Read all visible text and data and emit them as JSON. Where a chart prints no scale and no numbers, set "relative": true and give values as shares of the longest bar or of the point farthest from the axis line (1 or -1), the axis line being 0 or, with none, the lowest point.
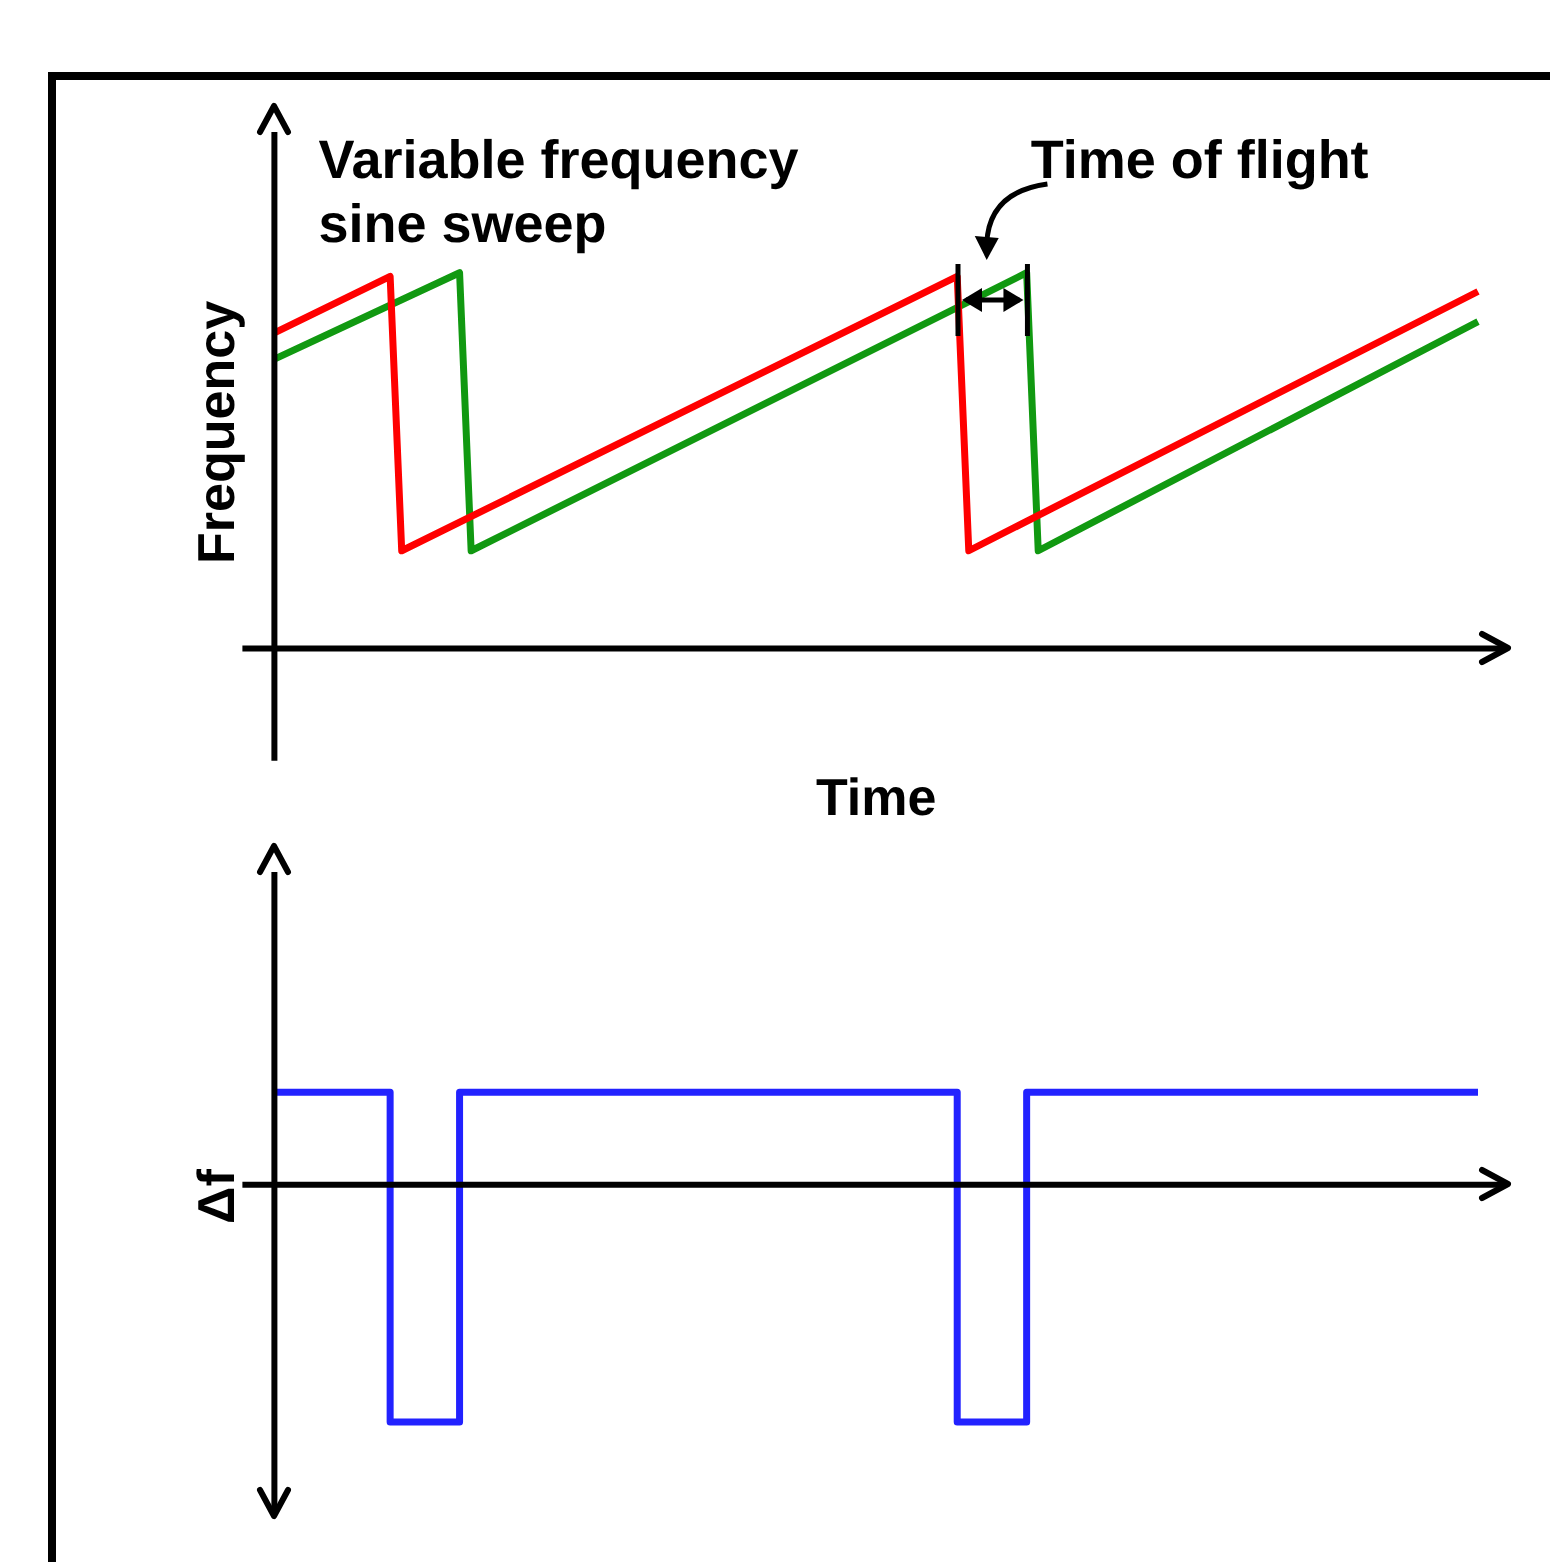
{
  "chart_data": [
    {
      "type": "line",
      "relative": true,
      "ylabel": "Frequency",
      "xlabel": "Time",
      "grid": false,
      "legend": false,
      "marker": "none",
      "line_style": "solid",
      "annotations": [
        "Variable frequency sine sweep",
        "Time of flight"
      ],
      "categories": [
        null,
        null,
        null,
        null,
        null,
        null,
        null,
        null,
        null,
        null,
        null,
        null,
        null,
        null,
        null,
        null,
        null,
        null,
        null,
        null,
        null,
        null,
        null,
        null,
        null,
        null,
        null,
        null,
        null,
        null,
        null,
        null,
        null,
        null,
        null,
        null,
        null,
        null,
        null,
        null,
        null,
        null,
        null,
        null,
        null,
        null,
        null,
        null,
        null,
        null,
        null,
        null,
        null,
        null,
        null,
        null,
        null,
        null,
        null,
        null,
        null,
        null,
        null,
        null,
        null,
        null,
        null,
        null,
        null,
        null,
        null,
        null,
        null,
        null,
        null,
        null,
        null,
        null,
        null,
        null,
        null,
        null,
        null,
        null,
        null,
        null,
        null,
        null,
        null,
        null,
        null,
        null,
        null,
        null,
        null,
        null,
        null,
        null,
        null,
        null,
        null,
        null,
        null,
        null,
        null
      ],
      "series": [
        {
          "color": "#ff0000",
          "values": [
            0.84,
            null,
            null,
            null,
            null,
            null,
            null,
            null,
            null,
            null,
            0.99,
            0.26,
            null,
            null,
            null,
            null,
            null,
            null,
            null,
            null,
            null,
            null,
            null,
            null,
            null,
            null,
            null,
            null,
            null,
            null,
            null,
            null,
            null,
            null,
            null,
            null,
            null,
            null,
            null,
            null,
            null,
            null,
            null,
            null,
            null,
            null,
            null,
            null,
            null,
            null,
            null,
            null,
            null,
            null,
            null,
            null,
            null,
            null,
            null,
            0.99,
            0.26,
            null,
            null,
            null,
            null,
            null,
            null,
            null,
            null,
            null,
            null,
            null,
            null,
            null,
            null,
            null,
            null,
            null,
            null,
            null,
            null,
            null,
            null,
            null,
            null,
            null,
            null,
            null,
            null,
            null,
            null,
            null,
            null,
            null,
            null,
            null,
            null,
            null,
            null,
            null,
            null,
            null,
            null,
            null,
            0.95
          ]
        },
        {
          "color": "#119911",
          "values": [
            0.77,
            null,
            null,
            null,
            null,
            null,
            null,
            null,
            null,
            null,
            null,
            null,
            null,
            null,
            null,
            null,
            1.0,
            0.26,
            null,
            null,
            null,
            null,
            null,
            null,
            null,
            null,
            null,
            null,
            null,
            null,
            null,
            null,
            null,
            null,
            null,
            null,
            null,
            null,
            null,
            null,
            null,
            null,
            null,
            null,
            null,
            null,
            null,
            null,
            null,
            null,
            null,
            null,
            null,
            null,
            null,
            null,
            null,
            null,
            null,
            null,
            null,
            null,
            null,
            null,
            null,
            1.0,
            0.26,
            null,
            null,
            null,
            null,
            null,
            null,
            null,
            null,
            null,
            null,
            null,
            null,
            null,
            null,
            null,
            null,
            null,
            null,
            null,
            null,
            null,
            null,
            null,
            null,
            null,
            null,
            null,
            null,
            null,
            null,
            null,
            null,
            null,
            null,
            null,
            null,
            null,
            0.87
          ]
        }
      ]
    },
    {
      "type": "step",
      "relative": true,
      "ylabel": "Δf",
      "grid": false,
      "legend": false,
      "marker": "none",
      "line_style": "solid",
      "categories": [
        null,
        null,
        null,
        null,
        null,
        null,
        null,
        null,
        null,
        null,
        null,
        null,
        null,
        null,
        null,
        null,
        null,
        null,
        null,
        null,
        null,
        null,
        null,
        null,
        null,
        null,
        null,
        null,
        null,
        null,
        null,
        null,
        null,
        null,
        null,
        null,
        null,
        null,
        null,
        null,
        null,
        null,
        null,
        null,
        null,
        null,
        null,
        null,
        null,
        null,
        null,
        null,
        null,
        null,
        null,
        null,
        null,
        null,
        null,
        null,
        null,
        null,
        null,
        null,
        null,
        null,
        null,
        null,
        null,
        null,
        null,
        null,
        null,
        null,
        null,
        null,
        null,
        null,
        null,
        null,
        null,
        null,
        null,
        null,
        null,
        null,
        null,
        null,
        null,
        null,
        null,
        null,
        null,
        null,
        null,
        null,
        null,
        null,
        null,
        null,
        null,
        null,
        null,
        null,
        null
      ],
      "series": [
        {
          "color": "#2222ff",
          "values": [
            0.39,
            null,
            null,
            null,
            null,
            null,
            null,
            null,
            null,
            null,
            -1,
            null,
            null,
            null,
            null,
            null,
            0.39,
            null,
            null,
            null,
            null,
            null,
            null,
            null,
            null,
            null,
            null,
            null,
            null,
            null,
            null,
            null,
            null,
            null,
            null,
            null,
            null,
            null,
            null,
            null,
            null,
            null,
            null,
            null,
            null,
            null,
            null,
            null,
            null,
            null,
            null,
            null,
            null,
            null,
            null,
            null,
            null,
            null,
            null,
            -1,
            null,
            null,
            null,
            null,
            null,
            0.39,
            null,
            null,
            null,
            null,
            null,
            null,
            null,
            null,
            null,
            null,
            null,
            null,
            null,
            null,
            null,
            null,
            null,
            null,
            null,
            null,
            null,
            null,
            null,
            null,
            null,
            null,
            null,
            null,
            null,
            null,
            null,
            null,
            null,
            null,
            null,
            null,
            null,
            null,
            0.39
          ]
        }
      ]
    }
  ]
}
